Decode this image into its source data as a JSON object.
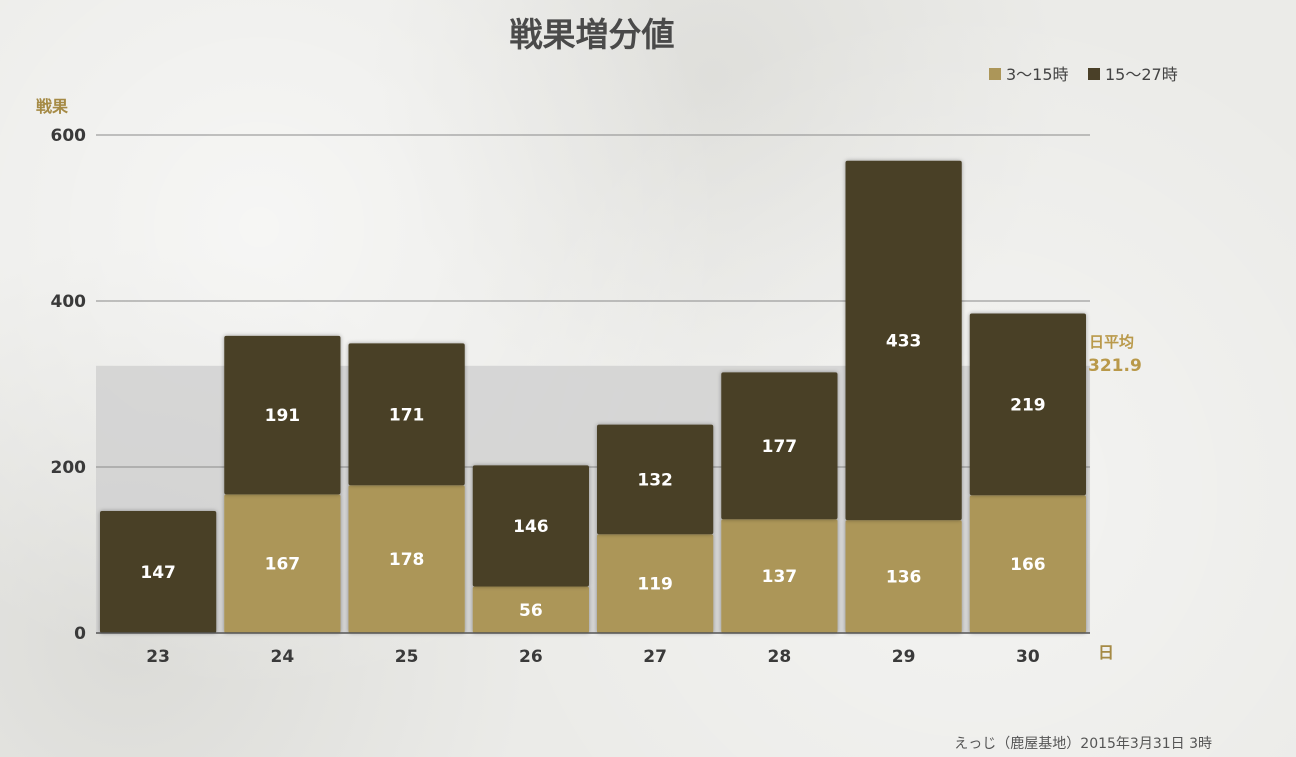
{
  "chart_data": {
    "type": "bar",
    "stacked": true,
    "title": "戦果増分値",
    "ylabel": "戦果",
    "xlabel": "日",
    "categories": [
      "23",
      "24",
      "25",
      "26",
      "27",
      "28",
      "29",
      "30"
    ],
    "series": [
      {
        "name": "3〜15時",
        "color": "#ac9659",
        "values": [
          0,
          167,
          178,
          56,
          119,
          137,
          136,
          166
        ]
      },
      {
        "name": "15〜27時",
        "color": "#4a4028",
        "values": [
          147,
          191,
          171,
          146,
          132,
          177,
          433,
          219
        ]
      }
    ],
    "ylim": [
      0,
      600
    ],
    "yticks": [
      0,
      200,
      400,
      600
    ],
    "grid": true,
    "legend_position": "top-right",
    "average": {
      "label": "日平均",
      "value": 321.9,
      "value_text": "321.9",
      "band_color": "#cfcfcf"
    },
    "credit": "えっじ（鹿屋基地）2015年3月31日 3時",
    "palette": {
      "axis": "#555555",
      "gridline": "#8a8a8a",
      "avg_label": "#b9994a"
    }
  }
}
